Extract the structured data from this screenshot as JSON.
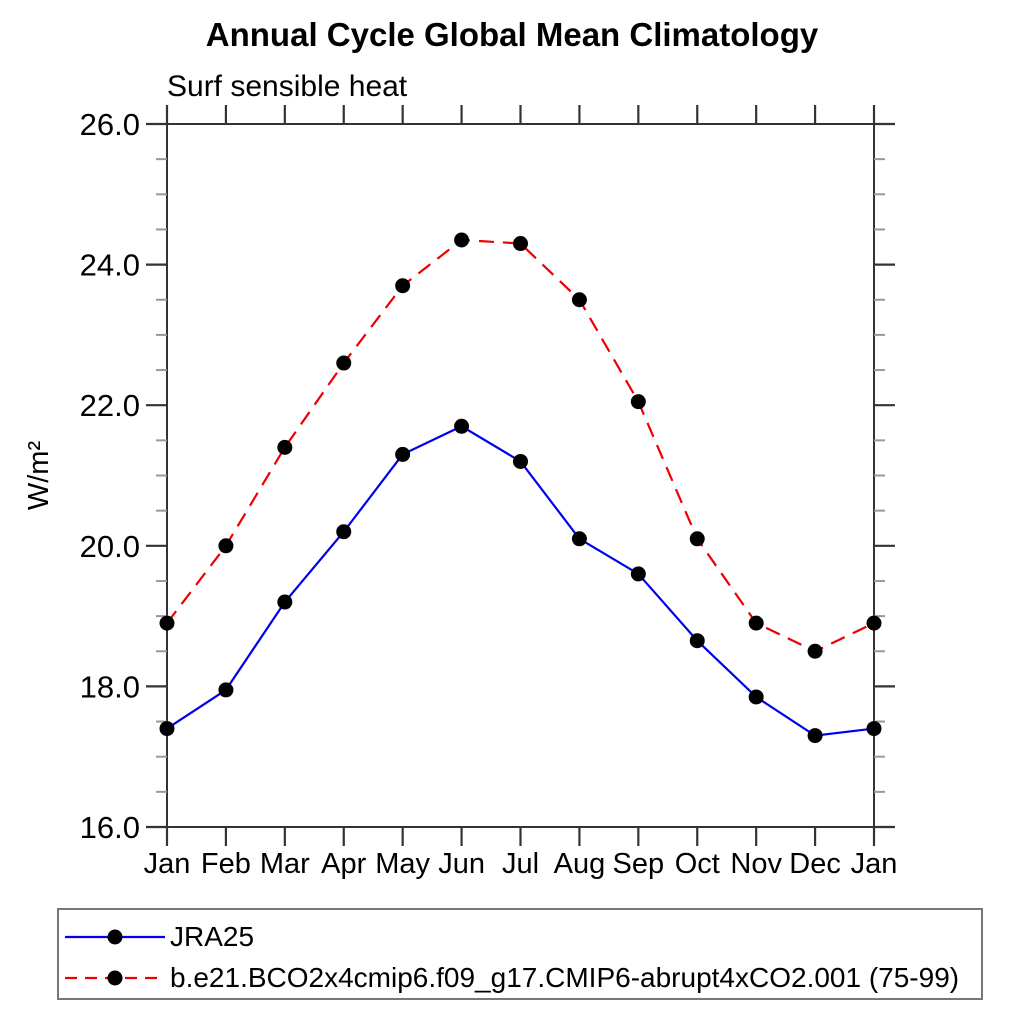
{
  "title": "Annual Cycle Global Mean Climatology",
  "subtitle": "Surf sensible heat",
  "chart_data": {
    "type": "line",
    "title": "Annual Cycle Global Mean Climatology",
    "subtitle": "Surf sensible heat",
    "xlabel": "",
    "ylabel": "W/m²",
    "categories": [
      "Jan",
      "Feb",
      "Mar",
      "Apr",
      "May",
      "Jun",
      "Jul",
      "Aug",
      "Sep",
      "Oct",
      "Nov",
      "Dec",
      "Jan"
    ],
    "series": [
      {
        "name": "JRA25",
        "color": "#0000ee",
        "line_style": "solid",
        "marker": "filled-black-circle",
        "values": [
          17.4,
          17.95,
          19.2,
          20.2,
          21.3,
          21.7,
          21.2,
          20.1,
          19.6,
          18.65,
          17.85,
          17.3,
          17.4
        ]
      },
      {
        "name": "b.e21.BCO2x4cmip6.f09_g17.CMIP6-abrupt4xCO2.001 (75-99)",
        "color": "#ee0000",
        "line_style": "dashed",
        "marker": "filled-black-circle",
        "values": [
          18.9,
          20.0,
          21.4,
          22.6,
          23.7,
          24.35,
          24.3,
          23.5,
          22.05,
          20.1,
          18.9,
          18.5,
          18.9
        ]
      }
    ],
    "ylim": [
      16.0,
      26.0
    ],
    "yticks": [
      16.0,
      18.0,
      20.0,
      22.0,
      24.0,
      26.0
    ],
    "ytick_labels": [
      "16.0",
      "18.0",
      "20.0",
      "22.0",
      "24.0",
      "26.0"
    ],
    "y_minor_tick_interval": 0.5,
    "grid": false,
    "frame": "box-with-outward-ticks",
    "legend_position": "bottom-left-box"
  },
  "legend": {
    "entries": [
      {
        "label": "JRA25"
      },
      {
        "label": "b.e21.BCO2x4cmip6.f09_g17.CMIP6-abrupt4xCO2.001 (75-99)"
      }
    ]
  },
  "colors": {
    "series1": "#0000ee",
    "series2": "#ee0000",
    "marker": "#000000",
    "frame": "#333333",
    "minor_tick": "#999999"
  }
}
